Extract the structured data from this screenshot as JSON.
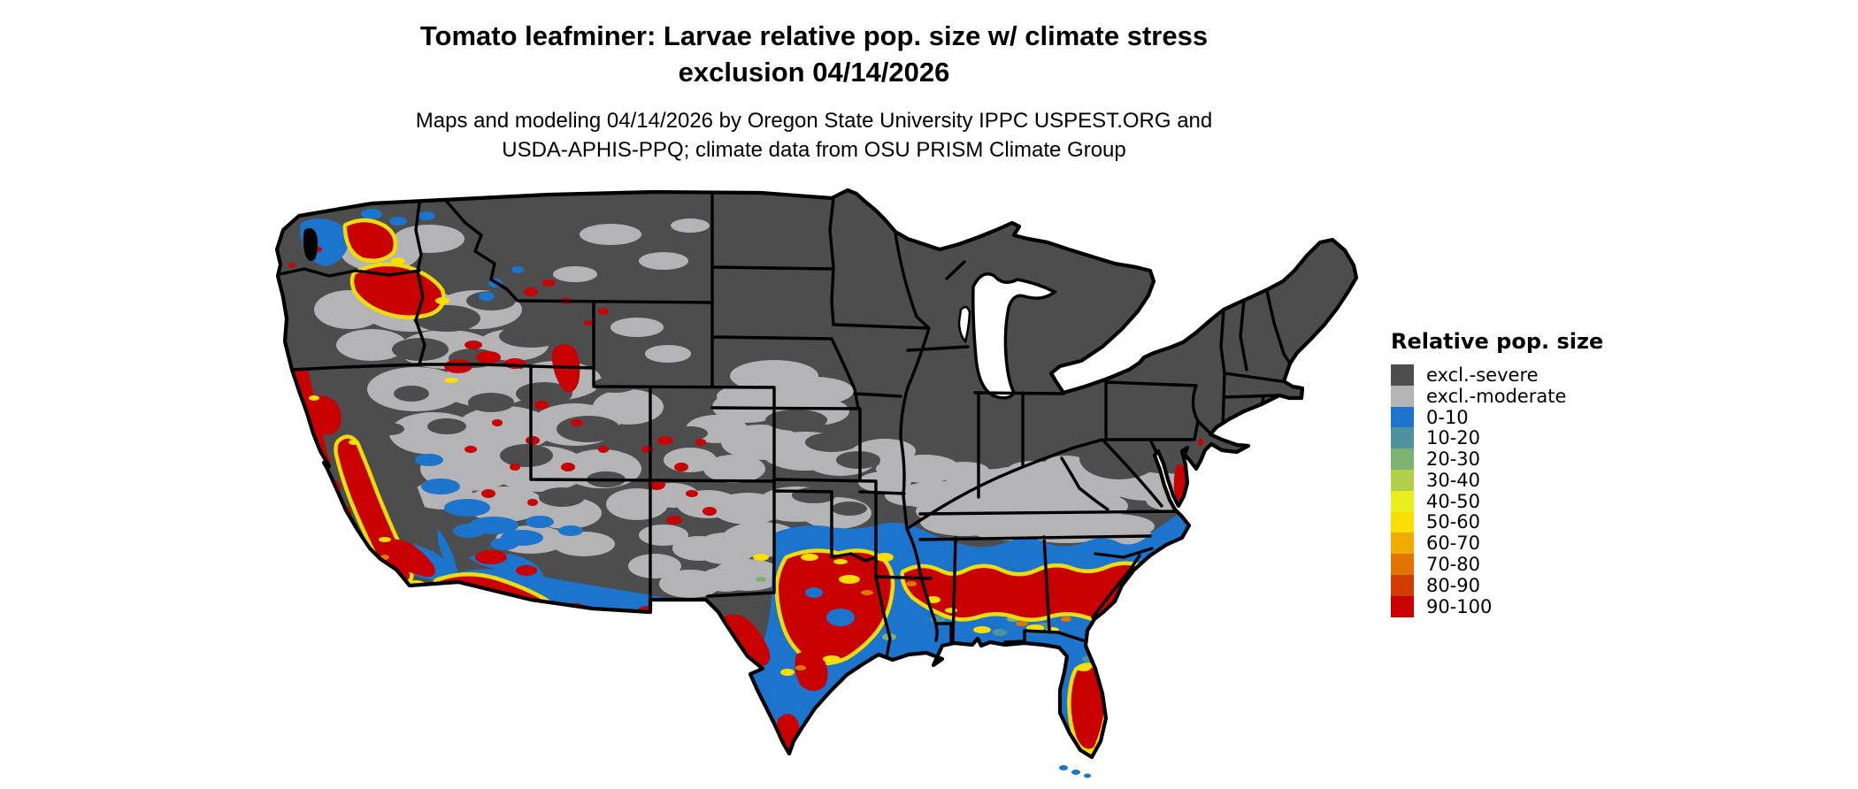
{
  "title": {
    "line1": "Tomato leafminer: Larvae relative pop. size w/ climate stress",
    "line2": "exclusion 04/14/2026"
  },
  "subtitle": {
    "line1": "Maps and modeling 04/14/2026 by Oregon State University IPPC USPEST.ORG and",
    "line2": "USDA-APHIS-PPQ; climate data from OSU PRISM Climate Group"
  },
  "legend": {
    "title": "Relative pop. size",
    "items": [
      {
        "label": "excl.-severe",
        "color": "#4D4D4E"
      },
      {
        "label": "excl.-moderate",
        "color": "#B4B4B6"
      },
      {
        "label": "0-10",
        "color": "#1C74CC"
      },
      {
        "label": "10-20",
        "color": "#4D929E"
      },
      {
        "label": "20-30",
        "color": "#7EB273"
      },
      {
        "label": "30-40",
        "color": "#B2CF49"
      },
      {
        "label": "40-50",
        "color": "#E9EE1E"
      },
      {
        "label": "50-60",
        "color": "#F8DF00"
      },
      {
        "label": "60-70",
        "color": "#F0AD00"
      },
      {
        "label": "70-80",
        "color": "#E27502"
      },
      {
        "label": "80-90",
        "color": "#D23C00"
      },
      {
        "label": "90-100",
        "color": "#C80000"
      }
    ]
  },
  "map": {
    "type": "categorical raster map of conterminous United States",
    "border_color": "#000000",
    "water_color": "#FFFFFF",
    "regions_summary": {
      "excl_severe": "northern tier: Midwest, Great Lakes, Northeast, Montana, Dakotas, Rockies, Sierra Nevada",
      "excl_moderate": "Great Basin, eastern WA/OR, plains band through Kansas/Oklahoma/Missouri, Kentucky/Tennessee/Virginia band",
      "pop_0_10": "southern band: east Texas, Gulf coastal strip, north Florida, Carolinas coastal plain, Arizona/New Mexico mid band, California coast",
      "pop_90_100": "western Oregon valley, central Washington, California Central Valley, southern Arizona, central Texas and south Texas tip, Gulf states band (LA/MS/AL/GA), central-south Florida, Delmarva strip",
      "transition": "yellow-orange fringes between blue and red zones"
    }
  }
}
